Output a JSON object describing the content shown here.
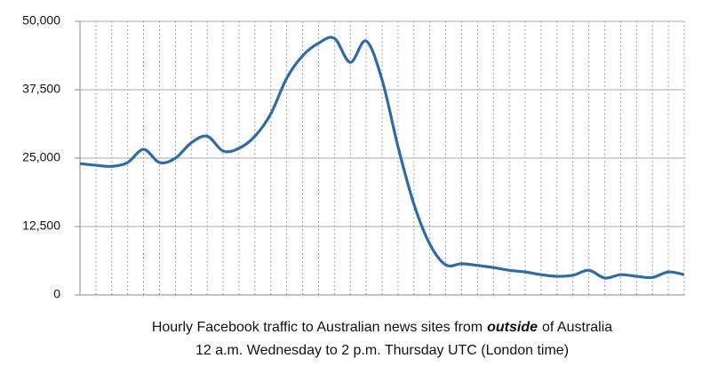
{
  "chart_data": {
    "type": "line",
    "title": [
      "Hourly Facebook traffic to Australian news sites from",
      "outside",
      "of Australia"
    ],
    "subtitle": "12 a.m. Wednesday to 2 p.m. Thursday UTC (London time)",
    "categories": [
      null,
      null,
      null,
      null,
      null,
      null,
      null,
      null,
      null,
      null,
      null,
      null,
      null,
      null,
      null,
      null,
      null,
      null,
      null,
      null,
      null,
      null,
      null,
      null,
      null,
      null,
      null,
      null,
      null,
      null,
      null,
      null,
      null,
      null,
      null,
      null,
      null,
      null,
      null
    ],
    "values": [
      24000,
      23700,
      23500,
      24200,
      26600,
      24200,
      25000,
      27800,
      29000,
      26300,
      26800,
      29000,
      33100,
      39600,
      43700,
      46000,
      46900,
      42500,
      46400,
      39300,
      27100,
      16600,
      9300,
      5500,
      5700,
      5400,
      5000,
      4500,
      4200,
      3700,
      3400,
      3600,
      4500,
      3100,
      3700,
      3400,
      3200,
      4200,
      3700
    ],
    "color": "#2f6ca6",
    "ylim": [
      0,
      50000
    ],
    "yticks": [
      0,
      {
        "value": 12500,
        "label": "12,500"
      },
      {
        "value": 25000,
        "label": "25,000"
      },
      {
        "value": 37500,
        "label": "37,500"
      },
      {
        "value": 50000,
        "label": "50,000"
      }
    ],
    "grid": true
  }
}
